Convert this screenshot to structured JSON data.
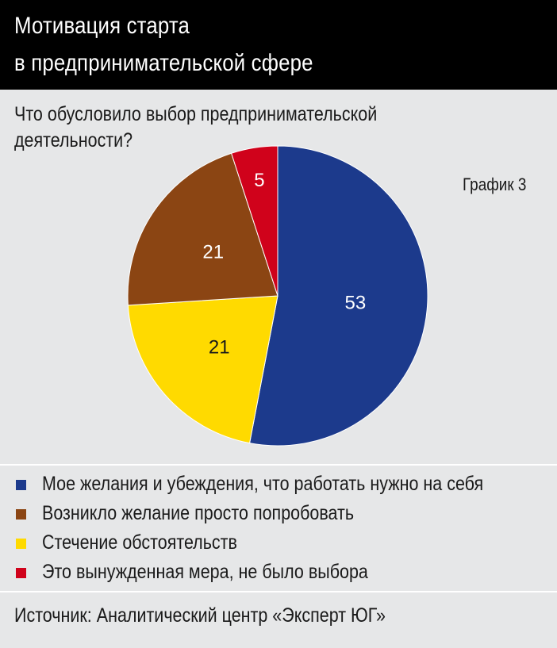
{
  "header": {
    "title_line1": "Мотивация старта",
    "title_line2": "в предпринимательской сфере"
  },
  "question": {
    "line1": "Что обусловило выбор предпринимательской",
    "line2": "деятельности?"
  },
  "graph_label": "График 3",
  "source": "Источник: Аналитический центр «Эксперт ЮГ»",
  "chart_data": {
    "type": "pie",
    "title": "Мотивация старта в предпринимательской сфере",
    "start_angle_deg": 0,
    "direction": "clockwise",
    "slices": [
      {
        "label": "Мое желания и убеждения, что работать нужно на себя",
        "value": 53,
        "value_label": "53",
        "color": "#1c3a8c",
        "label_color": "#ffffff"
      },
      {
        "label": "Стечение обстоятельств",
        "value": 21,
        "value_label": "21",
        "color": "#ffda00",
        "label_color": "#1a1a1a"
      },
      {
        "label": "Возникло желание просто попробовать",
        "value": 21,
        "value_label": "21",
        "color": "#8b4513",
        "label_color": "#ffffff"
      },
      {
        "label": "Это вынужденная мера, не было выбора",
        "value": 5,
        "value_label": "5",
        "color": "#d0021b",
        "label_color": "#ffffff"
      }
    ],
    "legend": [
      {
        "label": "Мое желания и убеждения, что работать нужно на себя",
        "color": "#1c3a8c"
      },
      {
        "label": "Возникло желание просто попробовать",
        "color": "#8b4513"
      },
      {
        "label": "Стечение обстоятельств",
        "color": "#ffda00"
      },
      {
        "label": "Это вынужденная мера, не было выбора",
        "color": "#d0021b"
      }
    ]
  }
}
